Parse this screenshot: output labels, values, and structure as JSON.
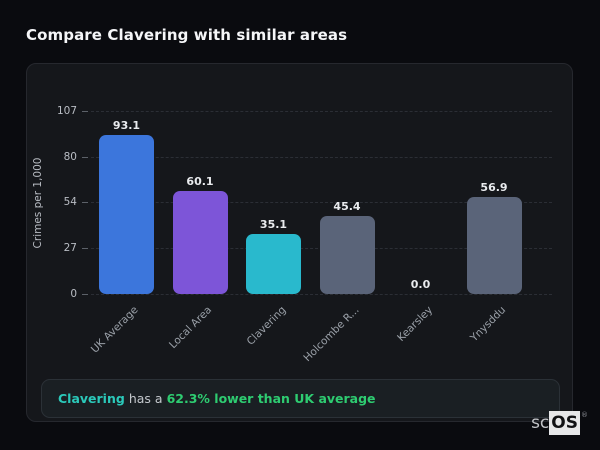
{
  "page": {
    "title": "Compare Clavering with similar areas"
  },
  "chart_data": {
    "type": "bar",
    "title": "Compare Clavering with similar areas",
    "categories": [
      "UK Average",
      "Local Area",
      "Clavering",
      "Holcombe R...",
      "Kearsley",
      "Ynysddu"
    ],
    "values": [
      93.1,
      60.1,
      35.1,
      45.4,
      0.0,
      56.9
    ],
    "value_labels": [
      "93.1",
      "60.1",
      "35.1",
      "45.4",
      "0.0",
      "56.9"
    ],
    "xlabel": "",
    "ylabel": "Crimes per 1,000",
    "yticks": [
      107,
      80,
      54,
      27,
      0
    ],
    "ylim": [
      0,
      107
    ],
    "grid": "horizontal dashed",
    "legend": "none",
    "bar_colors": [
      "#3c76dc",
      "#7d55d8",
      "#29b9cd",
      "#5a6479",
      "#5a6479",
      "#5a6479"
    ]
  },
  "annotation": {
    "area": "Clavering",
    "middle": "has a",
    "highlight": "62.3% lower than UK average",
    "area_color": "#2bc9ba",
    "highlight_color": "#2ecc71"
  },
  "logo": {
    "prefix": "sc",
    "suffix": "OS",
    "registered": "®"
  },
  "colors": {
    "page_background": "#0a0b0f",
    "card_background": "#15171b",
    "card_border": "#26282e",
    "gridline": "#2b2e35",
    "tick_text": "#b9bdc4",
    "xlabel_text": "#9aa0a8",
    "value_text": "#e9ebee",
    "title_text": "#f5f6f8"
  }
}
